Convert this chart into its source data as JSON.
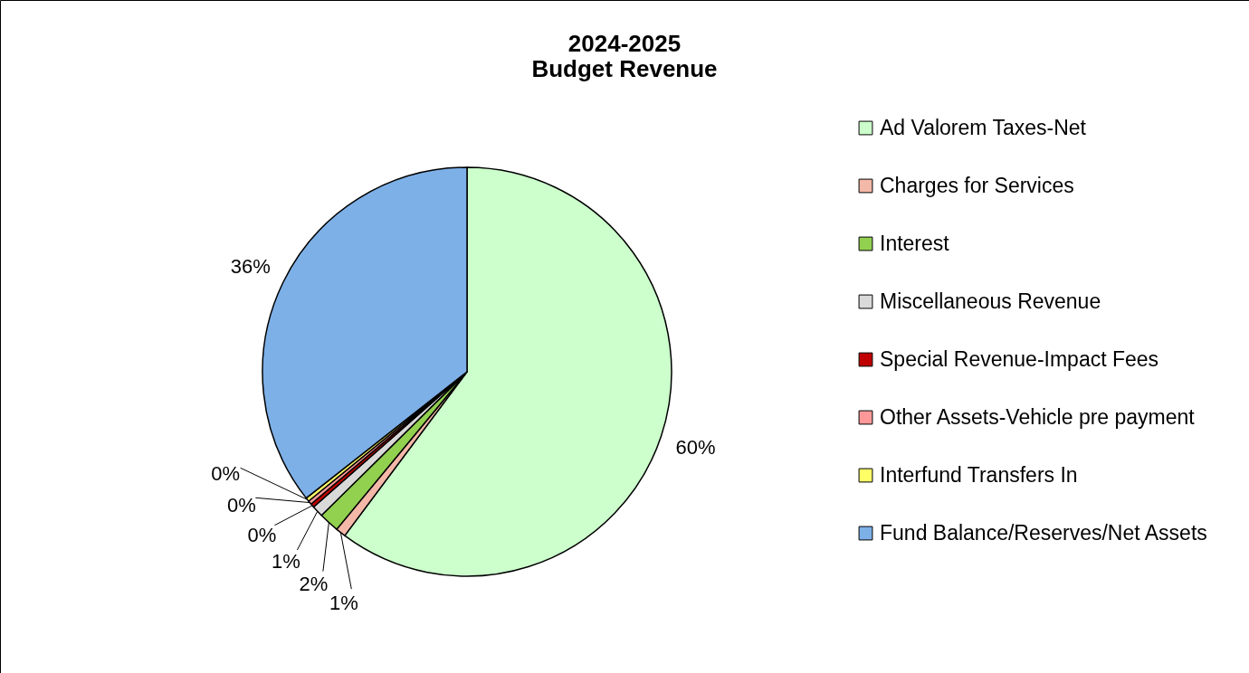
{
  "chart_data": {
    "type": "pie",
    "title": [
      "2024-2025",
      "Budget Revenue"
    ],
    "categories": [
      "Ad Valorem Taxes-Net",
      "Charges for Services",
      "Interest",
      "Miscellaneous Revenue",
      "Special Revenue-Impact Fees",
      "Other Assets-Vehicle pre payment",
      "Interfund Transfers In",
      "Fund Balance/Reserves/Net Assets"
    ],
    "values": [
      60.2,
      0.8,
      1.6,
      0.9,
      0.3,
      0.3,
      0.3,
      35.6
    ],
    "value_labels": [
      "60%",
      "1%",
      "2%",
      "1%",
      "0%",
      "0%",
      "0%",
      "36%"
    ],
    "colors": [
      "#ccffcc",
      "#f4b8a8",
      "#92d050",
      "#d9d9d9",
      "#c00000",
      "#ff9999",
      "#ffff66",
      "#7eb0e8"
    ],
    "legend": "right"
  }
}
